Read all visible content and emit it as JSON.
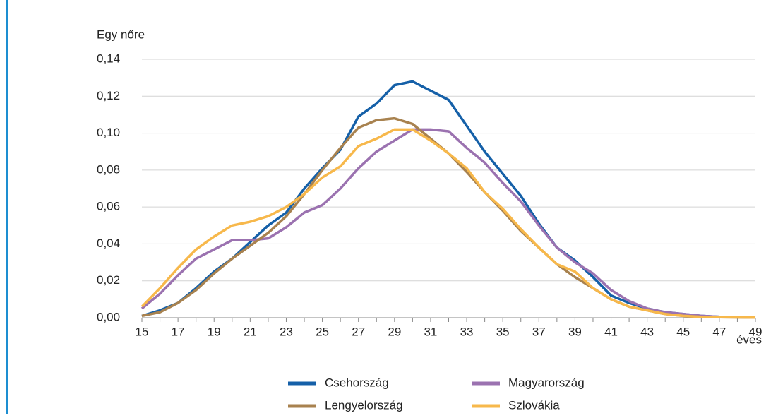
{
  "chart_data": {
    "type": "line",
    "y_label": "Egy nőre",
    "x_label": "éves",
    "x": [
      15,
      16,
      17,
      18,
      19,
      20,
      21,
      22,
      23,
      24,
      25,
      26,
      27,
      28,
      29,
      30,
      31,
      32,
      33,
      34,
      35,
      36,
      37,
      38,
      39,
      40,
      41,
      42,
      43,
      44,
      45,
      46,
      47,
      48,
      49
    ],
    "xlim": [
      15,
      49
    ],
    "xticks": [
      15,
      17,
      19,
      21,
      23,
      25,
      27,
      29,
      31,
      33,
      35,
      37,
      39,
      41,
      43,
      45,
      47,
      49
    ],
    "ylim": [
      0,
      0.14
    ],
    "yticks": [
      {
        "value": 0,
        "label": "0,00"
      },
      {
        "value": 0.02,
        "label": "0,02"
      },
      {
        "value": 0.04,
        "label": "0,04"
      },
      {
        "value": 0.06,
        "label": "0,06"
      },
      {
        "value": 0.08,
        "label": "0,08"
      },
      {
        "value": 0.1,
        "label": "0,10"
      },
      {
        "value": 0.12,
        "label": "0,12"
      },
      {
        "value": 0.14,
        "label": "0,14"
      }
    ],
    "grid": true,
    "legend": "bottom",
    "series": [
      {
        "name": "Csehország",
        "color": "#1560a8",
        "values": [
          0.001,
          0.004,
          0.008,
          0.016,
          0.025,
          0.032,
          0.041,
          0.05,
          0.057,
          0.07,
          0.081,
          0.091,
          0.109,
          0.116,
          0.126,
          0.128,
          0.123,
          0.118,
          0.104,
          0.09,
          0.078,
          0.066,
          0.051,
          0.038,
          0.031,
          0.022,
          0.012,
          0.008,
          0.005,
          0.003,
          0.002,
          0.001,
          0.0005,
          0.0003,
          0.0002
        ]
      },
      {
        "name": "Magyarország",
        "color": "#9b72b0",
        "values": [
          0.005,
          0.013,
          0.023,
          0.032,
          0.037,
          0.042,
          0.042,
          0.043,
          0.049,
          0.057,
          0.061,
          0.07,
          0.081,
          0.09,
          0.096,
          0.102,
          0.102,
          0.101,
          0.092,
          0.084,
          0.073,
          0.063,
          0.05,
          0.038,
          0.03,
          0.024,
          0.015,
          0.009,
          0.005,
          0.003,
          0.002,
          0.001,
          0.0005,
          0.0003,
          0.0002
        ]
      },
      {
        "name": "Lengyelország",
        "color": "#a8824f",
        "values": [
          0.001,
          0.003,
          0.008,
          0.015,
          0.024,
          0.032,
          0.039,
          0.046,
          0.055,
          0.067,
          0.08,
          0.092,
          0.103,
          0.107,
          0.108,
          0.105,
          0.097,
          0.089,
          0.079,
          0.068,
          0.058,
          0.047,
          0.038,
          0.029,
          0.022,
          0.016,
          0.01,
          0.006,
          0.004,
          0.002,
          0.001,
          0.0005,
          0.0003,
          0.0002,
          0.0001
        ]
      },
      {
        "name": "Szlovákia",
        "color": "#f7b84b",
        "values": [
          0.006,
          0.016,
          0.027,
          0.037,
          0.044,
          0.05,
          0.052,
          0.055,
          0.06,
          0.067,
          0.076,
          0.082,
          0.093,
          0.097,
          0.102,
          0.102,
          0.096,
          0.089,
          0.081,
          0.068,
          0.059,
          0.048,
          0.038,
          0.029,
          0.025,
          0.016,
          0.01,
          0.006,
          0.004,
          0.002,
          0.001,
          0.0005,
          0.0003,
          0.0002,
          0.0001
        ]
      }
    ]
  }
}
